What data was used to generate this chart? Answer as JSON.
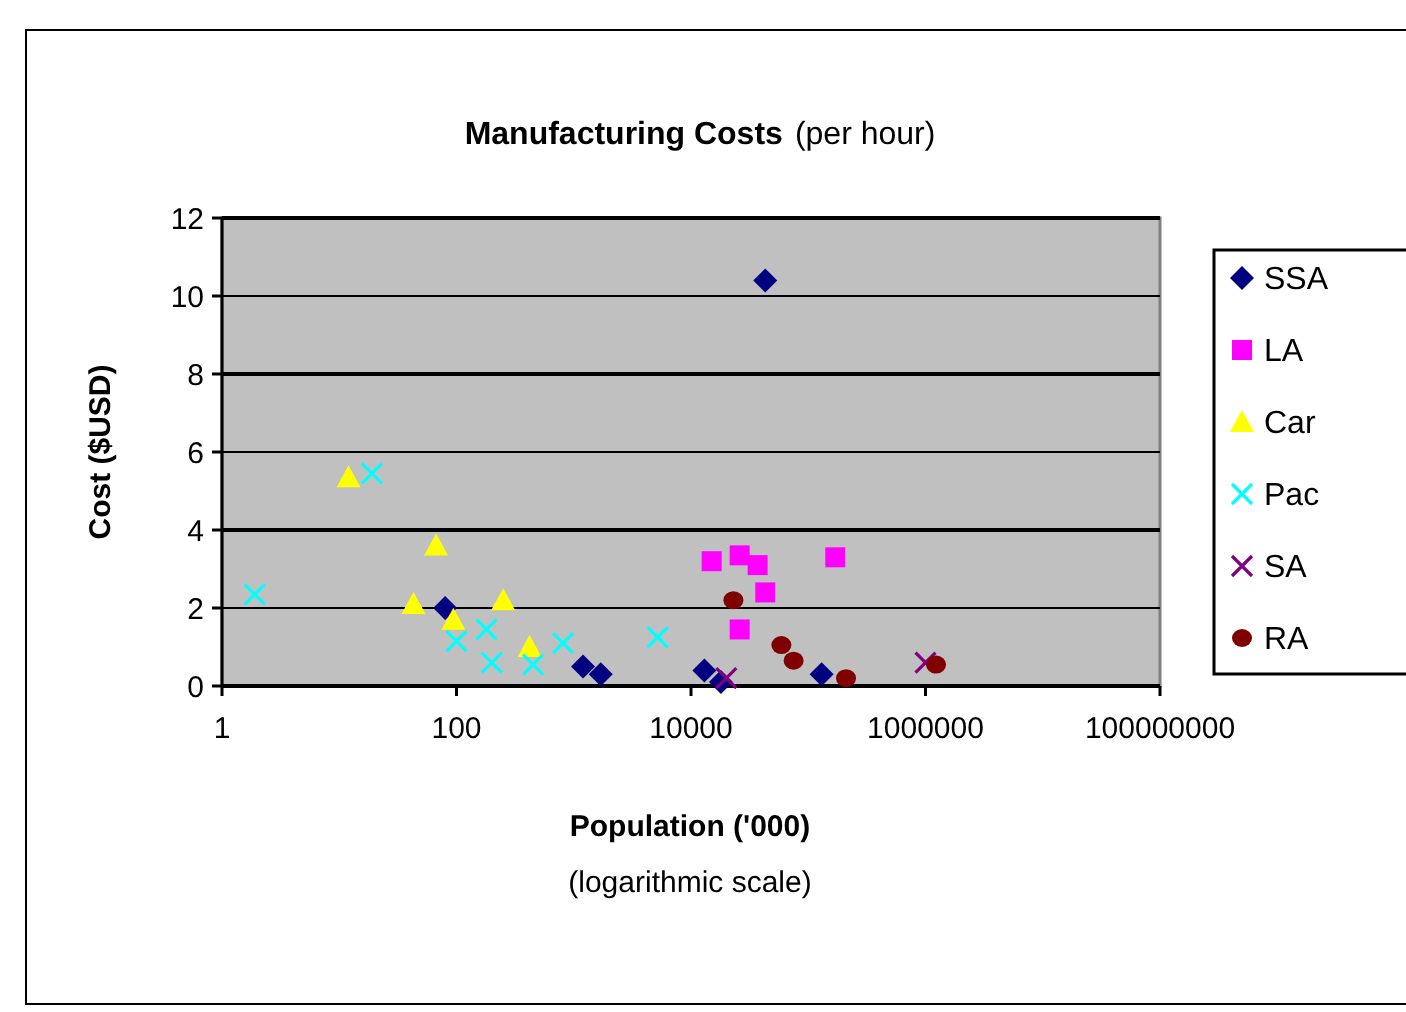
{
  "chart_data": {
    "type": "scatter",
    "title": "Manufacturing Costs",
    "subtitle": "(per hour)",
    "xlabel": "Population ('000)",
    "ylabel": "Cost ($USD)",
    "annotations": [
      "(logarithmic scale)"
    ],
    "log": "x",
    "grid": "y",
    "legend": "right",
    "xlim": [
      1,
      100000000
    ],
    "xticks": [
      1,
      100,
      10000,
      1000000,
      100000000
    ],
    "ylim": [
      0,
      12
    ],
    "yticks": [
      0,
      2,
      4,
      6,
      8,
      10,
      12
    ],
    "series": [
      {
        "name": "SSA",
        "color": "#000080",
        "marker": "diamond",
        "x": [
          80,
          1200,
          1700,
          13000,
          18000,
          43000,
          130000
        ],
        "values": [
          2.0,
          0.5,
          0.3,
          0.4,
          0.1,
          10.4,
          0.3
        ]
      },
      {
        "name": "LA",
        "color": "#ff00ff",
        "marker": "square",
        "x": [
          15000,
          26000,
          37000,
          43000,
          26000,
          170000
        ],
        "values": [
          3.2,
          3.35,
          3.1,
          2.4,
          1.45,
          3.3
        ]
      },
      {
        "name": "Car",
        "color": "#ffff00",
        "marker": "triangle",
        "x": [
          12,
          67,
          43,
          94,
          250,
          420
        ],
        "values": [
          5.35,
          3.6,
          2.1,
          1.7,
          2.2,
          1.0
        ]
      },
      {
        "name": "Pac",
        "color": "#00ffff",
        "marker": "cross",
        "x": [
          1.9,
          19,
          100,
          180,
          200,
          450,
          810,
          5200
        ],
        "values": [
          2.35,
          5.45,
          1.15,
          1.45,
          0.6,
          0.55,
          1.1,
          1.25
        ]
      },
      {
        "name": "SA",
        "color": "#800080",
        "marker": "cross",
        "x": [
          20000,
          1000000
        ],
        "values": [
          0.2,
          0.6
        ]
      },
      {
        "name": "RA",
        "color": "#800000",
        "marker": "circle",
        "x": [
          23000,
          59000,
          75000,
          210000,
          1230000
        ],
        "values": [
          2.2,
          1.05,
          0.65,
          0.2,
          0.55
        ]
      }
    ]
  }
}
